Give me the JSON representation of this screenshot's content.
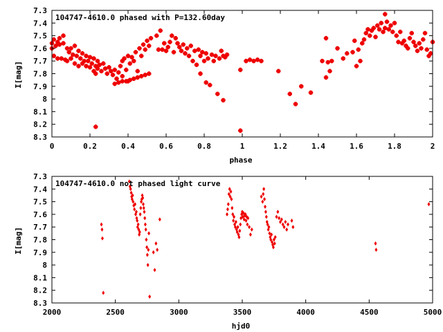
{
  "figure": {
    "background": "#ffffff",
    "marker_color": "#ee0000"
  },
  "chart_data": [
    {
      "type": "scatter",
      "title": "104747-4610.0 phased with P=132.60day",
      "xlabel": "phase",
      "ylabel": "I[mag]",
      "xlim": [
        0,
        2
      ],
      "ylim": [
        7.3,
        8.3
      ],
      "y_inverted": true,
      "marker": "star",
      "grid": false,
      "x_ticks": [
        "0",
        "0.2",
        "0.4",
        "0.6",
        "0.8",
        "1",
        "1.2",
        "1.4",
        "1.6",
        "1.8",
        "2"
      ],
      "y_ticks": [
        "7.3",
        "7.4",
        "7.5",
        "7.6",
        "7.7",
        "7.8",
        "7.9",
        "8",
        "8.1",
        "8.2",
        "8.3"
      ],
      "points": [
        [
          0.0,
          7.56
        ],
        [
          0.0,
          7.6
        ],
        [
          0.01,
          7.53
        ],
        [
          0.01,
          7.66
        ],
        [
          0.02,
          7.58
        ],
        [
          0.03,
          7.55
        ],
        [
          0.03,
          7.68
        ],
        [
          0.04,
          7.52
        ],
        [
          0.04,
          7.57
        ],
        [
          0.05,
          7.68
        ],
        [
          0.06,
          7.5
        ],
        [
          0.06,
          7.56
        ],
        [
          0.07,
          7.69
        ],
        [
          0.08,
          7.6
        ],
        [
          0.08,
          7.7
        ],
        [
          0.09,
          7.63
        ],
        [
          0.1,
          7.6
        ],
        [
          0.1,
          7.68
        ],
        [
          0.11,
          7.65
        ],
        [
          0.12,
          7.58
        ],
        [
          0.12,
          7.72
        ],
        [
          0.13,
          7.66
        ],
        [
          0.14,
          7.62
        ],
        [
          0.14,
          7.74
        ],
        [
          0.15,
          7.68
        ],
        [
          0.16,
          7.64
        ],
        [
          0.16,
          7.72
        ],
        [
          0.17,
          7.7
        ],
        [
          0.18,
          7.66
        ],
        [
          0.18,
          7.74
        ],
        [
          0.19,
          7.7
        ],
        [
          0.2,
          7.67
        ],
        [
          0.2,
          7.75
        ],
        [
          0.21,
          7.72
        ],
        [
          0.22,
          7.68
        ],
        [
          0.22,
          7.78
        ],
        [
          0.23,
          7.74
        ],
        [
          0.23,
          7.8
        ],
        [
          0.24,
          7.7
        ],
        [
          0.24,
          7.76
        ],
        [
          0.25,
          7.73
        ],
        [
          0.26,
          7.78
        ],
        [
          0.27,
          7.72
        ],
        [
          0.28,
          7.76
        ],
        [
          0.29,
          7.8
        ],
        [
          0.3,
          7.75
        ],
        [
          0.31,
          7.78
        ],
        [
          0.32,
          7.81
        ],
        [
          0.33,
          7.77
        ],
        [
          0.34,
          7.84
        ],
        [
          0.35,
          7.79
        ],
        [
          0.36,
          7.74
        ],
        [
          0.37,
          7.82
        ],
        [
          0.37,
          7.7
        ],
        [
          0.38,
          7.68
        ],
        [
          0.39,
          7.77
        ],
        [
          0.4,
          7.66
        ],
        [
          0.4,
          7.86
        ],
        [
          0.41,
          7.72
        ],
        [
          0.42,
          7.67
        ],
        [
          0.43,
          7.7
        ],
        [
          0.44,
          7.63
        ],
        [
          0.45,
          7.78
        ],
        [
          0.46,
          7.6
        ],
        [
          0.47,
          7.66
        ],
        [
          0.48,
          7.57
        ],
        [
          0.49,
          7.61
        ],
        [
          0.5,
          7.54
        ],
        [
          0.51,
          7.58
        ],
        [
          0.52,
          7.52
        ],
        [
          0.33,
          7.88
        ],
        [
          0.35,
          7.87
        ],
        [
          0.37,
          7.86
        ],
        [
          0.39,
          7.86
        ],
        [
          0.41,
          7.85
        ],
        [
          0.43,
          7.84
        ],
        [
          0.45,
          7.83
        ],
        [
          0.47,
          7.82
        ],
        [
          0.49,
          7.81
        ],
        [
          0.51,
          7.8
        ],
        [
          0.23,
          8.22
        ],
        [
          0.55,
          7.5
        ],
        [
          0.56,
          7.61
        ],
        [
          0.57,
          7.46
        ],
        [
          0.58,
          7.61
        ],
        [
          0.59,
          7.56
        ],
        [
          0.6,
          7.62
        ],
        [
          0.61,
          7.59
        ],
        [
          0.62,
          7.55
        ],
        [
          0.63,
          7.5
        ],
        [
          0.64,
          7.63
        ],
        [
          0.65,
          7.52
        ],
        [
          0.66,
          7.56
        ],
        [
          0.67,
          7.59
        ],
        [
          0.68,
          7.62
        ],
        [
          0.69,
          7.57
        ],
        [
          0.7,
          7.64
        ],
        [
          0.71,
          7.6
        ],
        [
          0.72,
          7.66
        ],
        [
          0.73,
          7.58
        ],
        [
          0.74,
          7.7
        ],
        [
          0.75,
          7.62
        ],
        [
          0.76,
          7.73
        ],
        [
          0.77,
          7.61
        ],
        [
          0.78,
          7.8
        ],
        [
          0.78,
          7.66
        ],
        [
          0.79,
          7.63
        ],
        [
          0.8,
          7.7
        ],
        [
          0.81,
          7.64
        ],
        [
          0.81,
          7.87
        ],
        [
          0.82,
          7.68
        ],
        [
          0.83,
          7.89
        ],
        [
          0.84,
          7.65
        ],
        [
          0.85,
          7.7
        ],
        [
          0.86,
          7.66
        ],
        [
          0.87,
          7.96
        ],
        [
          0.88,
          7.68
        ],
        [
          0.89,
          7.62
        ],
        [
          0.9,
          7.66
        ],
        [
          0.9,
          8.01
        ],
        [
          0.91,
          7.67
        ],
        [
          0.92,
          7.65
        ],
        [
          0.99,
          7.77
        ],
        [
          0.99,
          8.25
        ],
        [
          1.02,
          7.7
        ],
        [
          1.04,
          7.69
        ],
        [
          1.06,
          7.7
        ],
        [
          1.08,
          7.69
        ],
        [
          1.1,
          7.7
        ],
        [
          1.19,
          7.78
        ],
        [
          1.25,
          7.96
        ],
        [
          1.28,
          8.04
        ],
        [
          1.31,
          7.9
        ],
        [
          1.36,
          7.95
        ],
        [
          1.42,
          7.7
        ],
        [
          1.44,
          7.52
        ],
        [
          1.44,
          7.83
        ],
        [
          1.45,
          7.71
        ],
        [
          1.46,
          7.78
        ],
        [
          1.47,
          7.7
        ],
        [
          1.5,
          7.6
        ],
        [
          1.53,
          7.68
        ],
        [
          1.55,
          7.64
        ],
        [
          1.58,
          7.63
        ],
        [
          1.59,
          7.54
        ],
        [
          1.6,
          7.74
        ],
        [
          1.61,
          7.61
        ],
        [
          1.62,
          7.7
        ],
        [
          1.63,
          7.56
        ],
        [
          1.64,
          7.53
        ],
        [
          1.65,
          7.48
        ],
        [
          1.66,
          7.45
        ],
        [
          1.67,
          7.5
        ],
        [
          1.68,
          7.46
        ],
        [
          1.69,
          7.44
        ],
        [
          1.7,
          7.51
        ],
        [
          1.71,
          7.42
        ],
        [
          1.72,
          7.45
        ],
        [
          1.73,
          7.4
        ],
        [
          1.74,
          7.47
        ],
        [
          1.75,
          7.33
        ],
        [
          1.75,
          7.44
        ],
        [
          1.76,
          7.39
        ],
        [
          1.77,
          7.45
        ],
        [
          1.78,
          7.42
        ],
        [
          1.79,
          7.47
        ],
        [
          1.8,
          7.4
        ],
        [
          1.81,
          7.5
        ],
        [
          1.82,
          7.55
        ],
        [
          1.83,
          7.47
        ],
        [
          1.84,
          7.56
        ],
        [
          1.85,
          7.54
        ],
        [
          1.86,
          7.58
        ],
        [
          1.87,
          7.6
        ],
        [
          1.88,
          7.52
        ],
        [
          1.89,
          7.48
        ],
        [
          1.9,
          7.55
        ],
        [
          1.91,
          7.58
        ],
        [
          1.92,
          7.62
        ],
        [
          1.93,
          7.56
        ],
        [
          1.94,
          7.6
        ],
        [
          1.95,
          7.53
        ],
        [
          1.96,
          7.48
        ],
        [
          1.97,
          7.61
        ],
        [
          1.98,
          7.66
        ],
        [
          1.99,
          7.64
        ],
        [
          2.0,
          7.55
        ]
      ]
    },
    {
      "type": "scatter",
      "title": "104747-4610.0 not phased light curve",
      "xlabel": "hjd0",
      "ylabel": "I[mag]",
      "xlim": [
        2000,
        5000
      ],
      "ylim": [
        7.3,
        8.3
      ],
      "y_inverted": true,
      "marker": "diamond",
      "grid": false,
      "x_ticks": [
        "2000",
        "2500",
        "3000",
        "3500",
        "4000",
        "4500",
        "5000"
      ],
      "y_ticks": [
        "7.3",
        "7.4",
        "7.5",
        "7.6",
        "7.7",
        "7.8",
        "7.9",
        "8",
        "8.1",
        "8.2",
        "8.3"
      ],
      "points": [
        [
          2390,
          7.68
        ],
        [
          2395,
          7.72
        ],
        [
          2398,
          7.79
        ],
        [
          2405,
          8.22
        ],
        [
          2610,
          7.34
        ],
        [
          2615,
          7.38
        ],
        [
          2620,
          7.4
        ],
        [
          2625,
          7.43
        ],
        [
          2628,
          7.46
        ],
        [
          2632,
          7.48
        ],
        [
          2636,
          7.45
        ],
        [
          2640,
          7.5
        ],
        [
          2645,
          7.53
        ],
        [
          2650,
          7.56
        ],
        [
          2655,
          7.52
        ],
        [
          2660,
          7.6
        ],
        [
          2665,
          7.58
        ],
        [
          2668,
          7.63
        ],
        [
          2672,
          7.65
        ],
        [
          2675,
          7.7
        ],
        [
          2680,
          7.68
        ],
        [
          2684,
          7.72
        ],
        [
          2688,
          7.76
        ],
        [
          2692,
          7.74
        ],
        [
          2696,
          7.6
        ],
        [
          2700,
          7.55
        ],
        [
          2704,
          7.5
        ],
        [
          2708,
          7.48
        ],
        [
          2712,
          7.45
        ],
        [
          2716,
          7.47
        ],
        [
          2720,
          7.52
        ],
        [
          2724,
          7.55
        ],
        [
          2728,
          7.58
        ],
        [
          2732,
          7.63
        ],
        [
          2736,
          7.68
        ],
        [
          2740,
          7.72
        ],
        [
          2744,
          7.8
        ],
        [
          2748,
          7.86
        ],
        [
          2752,
          7.92
        ],
        [
          2756,
          8.0
        ],
        [
          2760,
          7.88
        ],
        [
          2764,
          7.75
        ],
        [
          2770,
          8.25
        ],
        [
          2800,
          7.9
        ],
        [
          2810,
          8.04
        ],
        [
          2820,
          7.83
        ],
        [
          2830,
          7.88
        ],
        [
          2850,
          7.64
        ],
        [
          3380,
          7.6
        ],
        [
          3385,
          7.56
        ],
        [
          3390,
          7.52
        ],
        [
          3395,
          7.44
        ],
        [
          3400,
          7.4
        ],
        [
          3405,
          7.46
        ],
        [
          3410,
          7.42
        ],
        [
          3415,
          7.48
        ],
        [
          3420,
          7.55
        ],
        [
          3425,
          7.6
        ],
        [
          3430,
          7.65
        ],
        [
          3435,
          7.62
        ],
        [
          3440,
          7.68
        ],
        [
          3445,
          7.7
        ],
        [
          3450,
          7.66
        ],
        [
          3455,
          7.72
        ],
        [
          3460,
          7.74
        ],
        [
          3465,
          7.7
        ],
        [
          3470,
          7.76
        ],
        [
          3475,
          7.78
        ],
        [
          3480,
          7.73
        ],
        [
          3485,
          7.68
        ],
        [
          3490,
          7.63
        ],
        [
          3495,
          7.6
        ],
        [
          3500,
          7.58
        ],
        [
          3505,
          7.62
        ],
        [
          3510,
          7.59
        ],
        [
          3515,
          7.64
        ],
        [
          3520,
          7.61
        ],
        [
          3525,
          7.6
        ],
        [
          3530,
          7.65
        ],
        [
          3535,
          7.62
        ],
        [
          3540,
          7.68
        ],
        [
          3545,
          7.63
        ],
        [
          3555,
          7.7
        ],
        [
          3565,
          7.76
        ],
        [
          3575,
          7.72
        ],
        [
          3650,
          7.46
        ],
        [
          3660,
          7.5
        ],
        [
          3665,
          7.44
        ],
        [
          3670,
          7.4
        ],
        [
          3675,
          7.48
        ],
        [
          3680,
          7.54
        ],
        [
          3685,
          7.58
        ],
        [
          3690,
          7.62
        ],
        [
          3695,
          7.66
        ],
        [
          3700,
          7.68
        ],
        [
          3705,
          7.72
        ],
        [
          3710,
          7.7
        ],
        [
          3715,
          7.75
        ],
        [
          3720,
          7.78
        ],
        [
          3725,
          7.8
        ],
        [
          3730,
          7.76
        ],
        [
          3735,
          7.82
        ],
        [
          3740,
          7.84
        ],
        [
          3745,
          7.86
        ],
        [
          3750,
          7.8
        ],
        [
          3755,
          7.83
        ],
        [
          3760,
          7.78
        ],
        [
          3770,
          7.62
        ],
        [
          3780,
          7.58
        ],
        [
          3790,
          7.63
        ],
        [
          3800,
          7.66
        ],
        [
          3810,
          7.64
        ],
        [
          3820,
          7.68
        ],
        [
          3830,
          7.7
        ],
        [
          3840,
          7.66
        ],
        [
          3850,
          7.72
        ],
        [
          3860,
          7.68
        ],
        [
          3890,
          7.65
        ],
        [
          3900,
          7.7
        ],
        [
          4550,
          7.83
        ],
        [
          4555,
          7.88
        ],
        [
          4970,
          7.52
        ]
      ]
    }
  ]
}
